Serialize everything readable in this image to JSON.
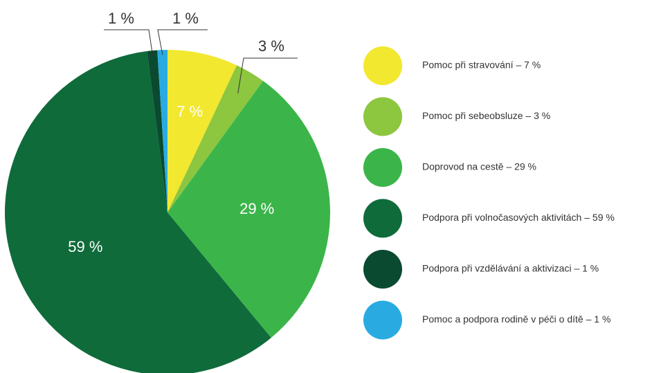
{
  "chart_data": {
    "type": "pie",
    "categories": [
      "Pomoc při stravování – 7 %",
      "Pomoc při sebeobsluze – 3 %",
      "Doprovod na cestě – 29 %",
      "Podpora při volnočasových aktivitách – 59 %",
      "Podpora při vzdělávání a aktivizaci – 1 %",
      "Pomoc a podpora rodině v péči o dítě – 1 %"
    ],
    "values": [
      7,
      3,
      29,
      59,
      1,
      1
    ],
    "value_labels": [
      "7 %",
      "3 %",
      "29 %",
      "59 %",
      "1 %",
      "1 %"
    ],
    "colors": [
      "#f2e830",
      "#8dc63f",
      "#3bb54a",
      "#0f6b3a",
      "#0a4a30",
      "#29abe2"
    ],
    "legend": "right"
  }
}
